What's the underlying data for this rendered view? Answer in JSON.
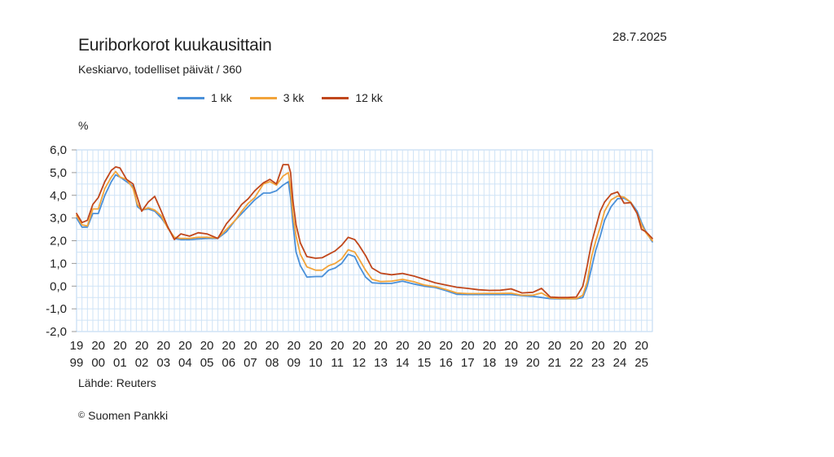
{
  "title": "Euriborkorot kuukausittain",
  "subtitle": "Keskiarvo, todelliset päivät / 360",
  "date": "28.7.2025",
  "unit": "%",
  "source": "Lähde: Reuters",
  "copyright_symbol": "©",
  "copyright": "Suomen Pankki",
  "chart_data": {
    "type": "line",
    "title": "Euriborkorot kuukausittain",
    "subtitle": "Keskiarvo, todelliset päivät / 360",
    "xlabel": "",
    "ylabel": "%",
    "ylim": [
      -2.0,
      6.0
    ],
    "y_ticks": [
      6.0,
      5.0,
      4.0,
      3.0,
      2.0,
      1.0,
      0.0,
      -1.0,
      -2.0
    ],
    "y_tick_labels": [
      "6,0",
      "5,0",
      "4,0",
      "3,0",
      "2,0",
      "1,0",
      "0,0",
      "-1,0",
      "-2,0"
    ],
    "x_ticks": [
      {
        "top": "19",
        "bottom": "99"
      },
      {
        "top": "20",
        "bottom": "00"
      },
      {
        "top": "20",
        "bottom": "01"
      },
      {
        "top": "20",
        "bottom": "02"
      },
      {
        "top": "20",
        "bottom": "03"
      },
      {
        "top": "20",
        "bottom": "04"
      },
      {
        "top": "20",
        "bottom": "05"
      },
      {
        "top": "20",
        "bottom": "06"
      },
      {
        "top": "20",
        "bottom": "07"
      },
      {
        "top": "20",
        "bottom": "08"
      },
      {
        "top": "20",
        "bottom": "09"
      },
      {
        "top": "20",
        "bottom": "10"
      },
      {
        "top": "20",
        "bottom": "11"
      },
      {
        "top": "20",
        "bottom": "12"
      },
      {
        "top": "20",
        "bottom": "13"
      },
      {
        "top": "20",
        "bottom": "14"
      },
      {
        "top": "20",
        "bottom": "15"
      },
      {
        "top": "20",
        "bottom": "16"
      },
      {
        "top": "20",
        "bottom": "17"
      },
      {
        "top": "20",
        "bottom": "18"
      },
      {
        "top": "20",
        "bottom": "19"
      },
      {
        "top": "20",
        "bottom": "20"
      },
      {
        "top": "20",
        "bottom": "21"
      },
      {
        "top": "20",
        "bottom": "22"
      },
      {
        "top": "20",
        "bottom": "23"
      },
      {
        "top": "20",
        "bottom": "24"
      },
      {
        "top": "20",
        "bottom": "25"
      }
    ],
    "x_range": [
      1999.0,
      2025.5
    ],
    "grid": true,
    "legend_position": "top",
    "series": [
      {
        "name": "1 kk",
        "color": "#4a90d9",
        "points": [
          [
            1999.0,
            3.0
          ],
          [
            1999.25,
            2.6
          ],
          [
            1999.5,
            2.6
          ],
          [
            1999.75,
            3.2
          ],
          [
            2000.0,
            3.2
          ],
          [
            2000.3,
            4.0
          ],
          [
            2000.6,
            4.6
          ],
          [
            2000.8,
            4.9
          ],
          [
            2001.0,
            4.8
          ],
          [
            2001.3,
            4.6
          ],
          [
            2001.6,
            4.4
          ],
          [
            2001.8,
            3.5
          ],
          [
            2002.0,
            3.35
          ],
          [
            2002.3,
            3.4
          ],
          [
            2002.6,
            3.3
          ],
          [
            2002.9,
            3.0
          ],
          [
            2003.2,
            2.6
          ],
          [
            2003.5,
            2.1
          ],
          [
            2003.8,
            2.05
          ],
          [
            2004.2,
            2.05
          ],
          [
            2004.6,
            2.08
          ],
          [
            2005.0,
            2.1
          ],
          [
            2005.5,
            2.1
          ],
          [
            2005.9,
            2.4
          ],
          [
            2006.3,
            2.9
          ],
          [
            2006.6,
            3.2
          ],
          [
            2006.9,
            3.5
          ],
          [
            2007.2,
            3.8
          ],
          [
            2007.6,
            4.1
          ],
          [
            2007.9,
            4.1
          ],
          [
            2008.2,
            4.2
          ],
          [
            2008.5,
            4.45
          ],
          [
            2008.75,
            4.6
          ],
          [
            2008.85,
            3.9
          ],
          [
            2008.95,
            2.8
          ],
          [
            2009.1,
            1.5
          ],
          [
            2009.3,
            0.9
          ],
          [
            2009.6,
            0.4
          ],
          [
            2010.0,
            0.42
          ],
          [
            2010.3,
            0.42
          ],
          [
            2010.6,
            0.7
          ],
          [
            2010.9,
            0.8
          ],
          [
            2011.2,
            1.0
          ],
          [
            2011.5,
            1.4
          ],
          [
            2011.8,
            1.3
          ],
          [
            2012.0,
            0.9
          ],
          [
            2012.3,
            0.4
          ],
          [
            2012.6,
            0.15
          ],
          [
            2013.0,
            0.12
          ],
          [
            2013.5,
            0.12
          ],
          [
            2014.0,
            0.22
          ],
          [
            2014.5,
            0.1
          ],
          [
            2015.0,
            0.0
          ],
          [
            2015.5,
            -0.06
          ],
          [
            2016.0,
            -0.2
          ],
          [
            2016.5,
            -0.36
          ],
          [
            2017.0,
            -0.37
          ],
          [
            2017.5,
            -0.37
          ],
          [
            2018.0,
            -0.37
          ],
          [
            2018.5,
            -0.37
          ],
          [
            2019.0,
            -0.37
          ],
          [
            2019.5,
            -0.42
          ],
          [
            2020.0,
            -0.45
          ],
          [
            2020.4,
            -0.5
          ],
          [
            2020.8,
            -0.55
          ],
          [
            2021.2,
            -0.56
          ],
          [
            2021.6,
            -0.56
          ],
          [
            2022.0,
            -0.56
          ],
          [
            2022.3,
            -0.5
          ],
          [
            2022.5,
            0.0
          ],
          [
            2022.7,
            0.8
          ],
          [
            2022.9,
            1.6
          ],
          [
            2023.1,
            2.2
          ],
          [
            2023.3,
            2.9
          ],
          [
            2023.6,
            3.5
          ],
          [
            2023.9,
            3.85
          ],
          [
            2024.2,
            3.87
          ],
          [
            2024.5,
            3.7
          ],
          [
            2024.8,
            3.3
          ],
          [
            2025.0,
            2.8
          ],
          [
            2025.2,
            2.4
          ],
          [
            2025.5,
            1.95
          ]
        ]
      },
      {
        "name": "3 kk",
        "color": "#f2a43a",
        "points": [
          [
            1999.0,
            3.1
          ],
          [
            1999.25,
            2.7
          ],
          [
            1999.5,
            2.65
          ],
          [
            1999.75,
            3.4
          ],
          [
            2000.0,
            3.4
          ],
          [
            2000.3,
            4.3
          ],
          [
            2000.6,
            4.8
          ],
          [
            2000.8,
            5.05
          ],
          [
            2001.0,
            4.8
          ],
          [
            2001.3,
            4.7
          ],
          [
            2001.6,
            4.3
          ],
          [
            2001.8,
            3.6
          ],
          [
            2002.0,
            3.35
          ],
          [
            2002.3,
            3.45
          ],
          [
            2002.6,
            3.35
          ],
          [
            2002.9,
            3.1
          ],
          [
            2003.2,
            2.55
          ],
          [
            2003.5,
            2.15
          ],
          [
            2003.8,
            2.1
          ],
          [
            2004.2,
            2.1
          ],
          [
            2004.6,
            2.15
          ],
          [
            2005.0,
            2.15
          ],
          [
            2005.5,
            2.12
          ],
          [
            2005.9,
            2.5
          ],
          [
            2006.3,
            2.9
          ],
          [
            2006.6,
            3.3
          ],
          [
            2006.9,
            3.65
          ],
          [
            2007.2,
            3.9
          ],
          [
            2007.6,
            4.5
          ],
          [
            2007.9,
            4.6
          ],
          [
            2008.2,
            4.45
          ],
          [
            2008.5,
            4.85
          ],
          [
            2008.75,
            5.0
          ],
          [
            2008.85,
            4.3
          ],
          [
            2008.95,
            3.2
          ],
          [
            2009.1,
            2.2
          ],
          [
            2009.3,
            1.4
          ],
          [
            2009.6,
            0.85
          ],
          [
            2010.0,
            0.7
          ],
          [
            2010.3,
            0.7
          ],
          [
            2010.6,
            0.9
          ],
          [
            2010.9,
            1.0
          ],
          [
            2011.2,
            1.2
          ],
          [
            2011.5,
            1.6
          ],
          [
            2011.8,
            1.5
          ],
          [
            2012.0,
            1.2
          ],
          [
            2012.3,
            0.7
          ],
          [
            2012.6,
            0.3
          ],
          [
            2013.0,
            0.2
          ],
          [
            2013.5,
            0.22
          ],
          [
            2014.0,
            0.3
          ],
          [
            2014.5,
            0.2
          ],
          [
            2015.0,
            0.05
          ],
          [
            2015.5,
            -0.02
          ],
          [
            2016.0,
            -0.15
          ],
          [
            2016.5,
            -0.3
          ],
          [
            2017.0,
            -0.33
          ],
          [
            2017.5,
            -0.33
          ],
          [
            2018.0,
            -0.32
          ],
          [
            2018.5,
            -0.32
          ],
          [
            2019.0,
            -0.31
          ],
          [
            2019.5,
            -0.4
          ],
          [
            2020.0,
            -0.4
          ],
          [
            2020.4,
            -0.3
          ],
          [
            2020.8,
            -0.52
          ],
          [
            2021.2,
            -0.54
          ],
          [
            2021.6,
            -0.55
          ],
          [
            2022.0,
            -0.55
          ],
          [
            2022.3,
            -0.4
          ],
          [
            2022.5,
            0.2
          ],
          [
            2022.7,
            1.3
          ],
          [
            2022.9,
            2.0
          ],
          [
            2023.1,
            2.6
          ],
          [
            2023.3,
            3.3
          ],
          [
            2023.6,
            3.8
          ],
          [
            2023.9,
            3.97
          ],
          [
            2024.2,
            3.92
          ],
          [
            2024.5,
            3.7
          ],
          [
            2024.8,
            3.2
          ],
          [
            2025.0,
            2.7
          ],
          [
            2025.2,
            2.35
          ],
          [
            2025.5,
            2.0
          ]
        ]
      },
      {
        "name": "12 kk",
        "color": "#c0471c",
        "points": [
          [
            1999.0,
            3.2
          ],
          [
            1999.25,
            2.8
          ],
          [
            1999.5,
            2.9
          ],
          [
            1999.75,
            3.6
          ],
          [
            2000.0,
            3.9
          ],
          [
            2000.3,
            4.6
          ],
          [
            2000.6,
            5.1
          ],
          [
            2000.8,
            5.25
          ],
          [
            2001.0,
            5.2
          ],
          [
            2001.3,
            4.7
          ],
          [
            2001.6,
            4.5
          ],
          [
            2001.8,
            3.9
          ],
          [
            2002.0,
            3.3
          ],
          [
            2002.3,
            3.7
          ],
          [
            2002.6,
            3.95
          ],
          [
            2002.9,
            3.3
          ],
          [
            2003.2,
            2.6
          ],
          [
            2003.5,
            2.05
          ],
          [
            2003.8,
            2.3
          ],
          [
            2004.2,
            2.2
          ],
          [
            2004.6,
            2.35
          ],
          [
            2005.0,
            2.3
          ],
          [
            2005.5,
            2.1
          ],
          [
            2005.9,
            2.75
          ],
          [
            2006.3,
            3.2
          ],
          [
            2006.6,
            3.6
          ],
          [
            2006.9,
            3.85
          ],
          [
            2007.2,
            4.2
          ],
          [
            2007.6,
            4.55
          ],
          [
            2007.9,
            4.7
          ],
          [
            2008.2,
            4.5
          ],
          [
            2008.5,
            5.35
          ],
          [
            2008.75,
            5.35
          ],
          [
            2008.85,
            5.0
          ],
          [
            2008.95,
            3.8
          ],
          [
            2009.1,
            2.7
          ],
          [
            2009.3,
            1.9
          ],
          [
            2009.6,
            1.3
          ],
          [
            2010.0,
            1.23
          ],
          [
            2010.3,
            1.25
          ],
          [
            2010.6,
            1.4
          ],
          [
            2010.9,
            1.55
          ],
          [
            2011.2,
            1.8
          ],
          [
            2011.5,
            2.15
          ],
          [
            2011.8,
            2.05
          ],
          [
            2012.0,
            1.8
          ],
          [
            2012.3,
            1.35
          ],
          [
            2012.6,
            0.8
          ],
          [
            2013.0,
            0.57
          ],
          [
            2013.5,
            0.5
          ],
          [
            2014.0,
            0.56
          ],
          [
            2014.5,
            0.45
          ],
          [
            2015.0,
            0.3
          ],
          [
            2015.5,
            0.15
          ],
          [
            2016.0,
            0.05
          ],
          [
            2016.5,
            -0.05
          ],
          [
            2017.0,
            -0.1
          ],
          [
            2017.5,
            -0.16
          ],
          [
            2018.0,
            -0.19
          ],
          [
            2018.5,
            -0.18
          ],
          [
            2019.0,
            -0.12
          ],
          [
            2019.5,
            -0.3
          ],
          [
            2020.0,
            -0.27
          ],
          [
            2020.4,
            -0.1
          ],
          [
            2020.8,
            -0.48
          ],
          [
            2021.2,
            -0.5
          ],
          [
            2021.6,
            -0.5
          ],
          [
            2022.0,
            -0.48
          ],
          [
            2022.3,
            0.0
          ],
          [
            2022.5,
            0.9
          ],
          [
            2022.7,
            1.9
          ],
          [
            2022.9,
            2.6
          ],
          [
            2023.1,
            3.3
          ],
          [
            2023.3,
            3.7
          ],
          [
            2023.6,
            4.05
          ],
          [
            2023.9,
            4.15
          ],
          [
            2024.2,
            3.65
          ],
          [
            2024.5,
            3.68
          ],
          [
            2024.8,
            3.2
          ],
          [
            2025.0,
            2.5
          ],
          [
            2025.2,
            2.4
          ],
          [
            2025.5,
            2.1
          ]
        ]
      }
    ]
  }
}
